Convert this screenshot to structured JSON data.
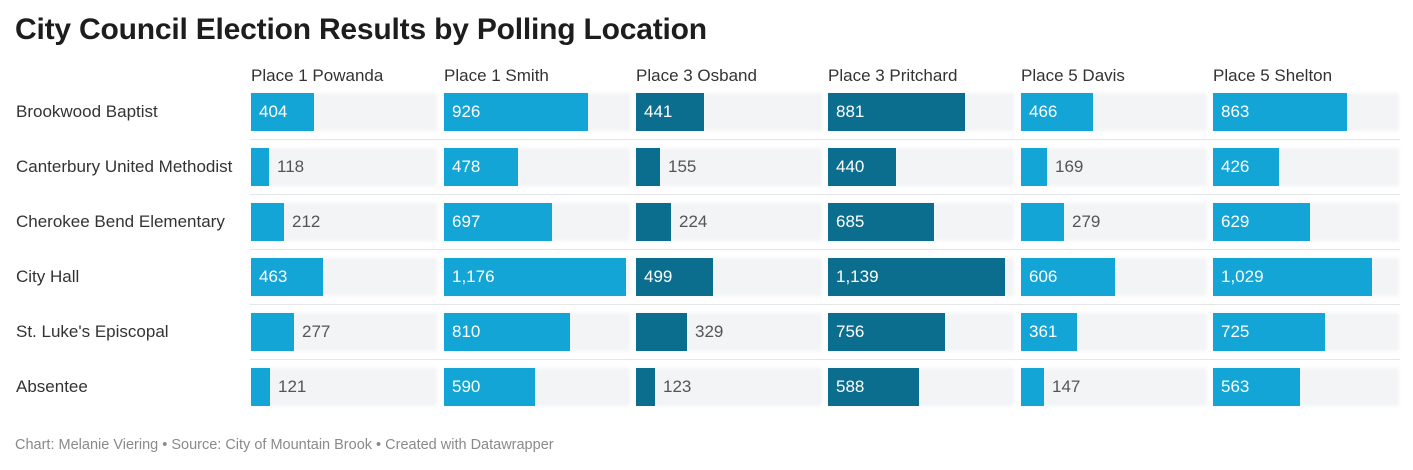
{
  "chart_data": {
    "type": "bar",
    "title": "City Council Election Results by Polling Location",
    "categories": [
      "Brookwood Baptist",
      "Canterbury United Methodist",
      "Cherokee Bend Elementary",
      "City Hall",
      "St. Luke's Episcopal",
      "Absentee"
    ],
    "series": [
      {
        "name": "Place 1 Powanda",
        "color": "#12a5d6",
        "values": [
          404,
          118,
          212,
          463,
          277,
          121
        ],
        "labels": [
          "404",
          "118",
          "212",
          "463",
          "277",
          "121"
        ]
      },
      {
        "name": "Place 1 Smith",
        "color": "#12a5d6",
        "values": [
          926,
          478,
          697,
          1176,
          810,
          590
        ],
        "labels": [
          "926",
          "478",
          "697",
          "1,176",
          "810",
          "590"
        ]
      },
      {
        "name": "Place 3 Osband",
        "color": "#0c6e8e",
        "values": [
          441,
          155,
          224,
          499,
          329,
          123
        ],
        "labels": [
          "441",
          "155",
          "224",
          "499",
          "329",
          "123"
        ]
      },
      {
        "name": "Place 3 Pritchard",
        "color": "#0c6e8e",
        "values": [
          881,
          440,
          685,
          1139,
          756,
          588
        ],
        "labels": [
          "881",
          "440",
          "685",
          "1,139",
          "756",
          "588"
        ]
      },
      {
        "name": "Place 5 Davis",
        "color": "#12a5d6",
        "values": [
          466,
          169,
          279,
          606,
          361,
          147
        ],
        "labels": [
          "466",
          "169",
          "279",
          "606",
          "361",
          "147"
        ]
      },
      {
        "name": "Place 5 Shelton",
        "color": "#12a5d6",
        "values": [
          863,
          426,
          629,
          1029,
          725,
          563
        ],
        "labels": [
          "863",
          "426",
          "629",
          "1,029",
          "725",
          "563"
        ]
      }
    ],
    "xlim": [
      0,
      1200
    ],
    "xlabel": "",
    "ylabel": "",
    "grid": false,
    "legend": "none"
  },
  "footer": {
    "text": "Chart: Melanie Viering • Source: City of Mountain Brook • Created with Datawrapper"
  }
}
